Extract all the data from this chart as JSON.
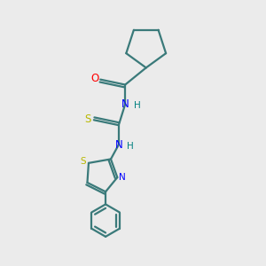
{
  "background_color": "#ebebeb",
  "bond_color": "#3a7a7a",
  "atom_colors": {
    "O": "#ff0000",
    "N": "#0000ff",
    "S_thio": "#b8b800",
    "S_ring": "#b8b800",
    "H": "#008080",
    "C": "#3a7a7a"
  },
  "lw": 1.6
}
